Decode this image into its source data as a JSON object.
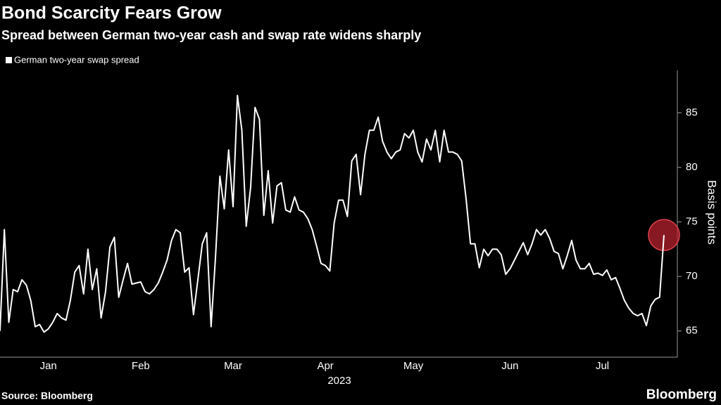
{
  "chart_data": {
    "type": "line",
    "title": "Bond Scarcity Fears Grow",
    "subtitle": "Spread between German two-year cash and swap rate widens sharply",
    "ylabel": "Basis points",
    "xlabel": "2023",
    "source": "Source: Bloomberg",
    "brand": "Bloomberg",
    "categories": [
      null,
      null,
      null,
      null,
      null,
      null,
      null,
      null,
      null,
      null,
      null,
      "Jan",
      null,
      null,
      null,
      null,
      null,
      null,
      null,
      null,
      null,
      null,
      null,
      null,
      null,
      null,
      null,
      null,
      null,
      null,
      null,
      null,
      "Feb",
      null,
      null,
      null,
      null,
      null,
      null,
      null,
      null,
      null,
      null,
      null,
      null,
      null,
      null,
      null,
      null,
      null,
      null,
      null,
      null,
      "Mar",
      null,
      null,
      null,
      null,
      null,
      null,
      null,
      null,
      null,
      null,
      null,
      null,
      null,
      null,
      null,
      null,
      null,
      null,
      null,
      null,
      "Apr",
      null,
      null,
      null,
      null,
      null,
      null,
      null,
      null,
      null,
      null,
      null,
      null,
      null,
      null,
      null,
      null,
      null,
      null,
      null,
      "May",
      null,
      null,
      null,
      null,
      null,
      null,
      null,
      null,
      null,
      null,
      null,
      null,
      null,
      null,
      null,
      null,
      null,
      null,
      null,
      null,
      null,
      "Jun",
      null,
      null,
      null,
      null,
      null,
      null,
      null,
      null,
      null,
      null,
      null,
      null,
      null,
      null,
      null,
      null,
      null,
      null,
      null,
      null,
      "Jul",
      null,
      null,
      null,
      null,
      null,
      null,
      null,
      null,
      null,
      null,
      null,
      null,
      null,
      null
    ],
    "series": [
      {
        "name": "German two-year swap spread",
        "color": "#ffffff",
        "values": [
          65.0,
          74.3,
          65.8,
          68.8,
          68.6,
          69.7,
          69.2,
          67.8,
          65.4,
          65.6,
          64.9,
          65.2,
          65.8,
          66.6,
          66.2,
          66.0,
          67.8,
          70.4,
          71.0,
          68.4,
          72.5,
          68.8,
          70.7,
          66.2,
          68.6,
          72.7,
          73.6,
          68.1,
          69.7,
          71.2,
          69.3,
          69.4,
          69.5,
          68.6,
          68.4,
          68.8,
          69.4,
          70.4,
          71.5,
          73.3,
          74.3,
          74.0,
          70.4,
          70.8,
          66.5,
          69.7,
          73.0,
          74.0,
          65.4,
          71.7,
          79.2,
          76.2,
          81.6,
          76.4,
          86.6,
          83.4,
          74.6,
          78.2,
          85.5,
          84.4,
          75.6,
          79.7,
          74.9,
          78.3,
          78.6,
          76.1,
          75.9,
          77.3,
          76.1,
          75.9,
          75.3,
          74.3,
          72.8,
          71.2,
          71.0,
          70.5,
          74.9,
          77.0,
          77.0,
          75.5,
          80.6,
          81.2,
          77.5,
          81.2,
          83.4,
          83.4,
          84.6,
          82.4,
          81.4,
          80.8,
          81.4,
          81.6,
          83.1,
          82.7,
          83.4,
          81.4,
          80.5,
          82.6,
          81.6,
          83.4,
          80.5,
          83.4,
          81.4,
          81.4,
          81.2,
          80.6,
          77.1,
          73.0,
          73.0,
          70.8,
          72.5,
          71.9,
          72.5,
          72.5,
          72.0,
          70.2,
          70.7,
          71.5,
          72.3,
          73.1,
          72.0,
          73.0,
          74.3,
          73.8,
          74.3,
          73.5,
          72.3,
          72.1,
          70.7,
          71.9,
          73.3,
          71.5,
          70.7,
          70.7,
          71.2,
          70.2,
          70.3,
          70.1,
          70.6,
          69.7,
          69.9,
          68.9,
          67.8,
          67.1,
          66.6,
          66.4,
          66.6,
          65.5,
          67.3,
          67.9,
          68.1,
          73.8
        ]
      }
    ],
    "highlight_color": "#b5202e",
    "ylim": [
      62.6,
      88.9
    ],
    "yticks": [
      65,
      70,
      75,
      80,
      85
    ]
  }
}
